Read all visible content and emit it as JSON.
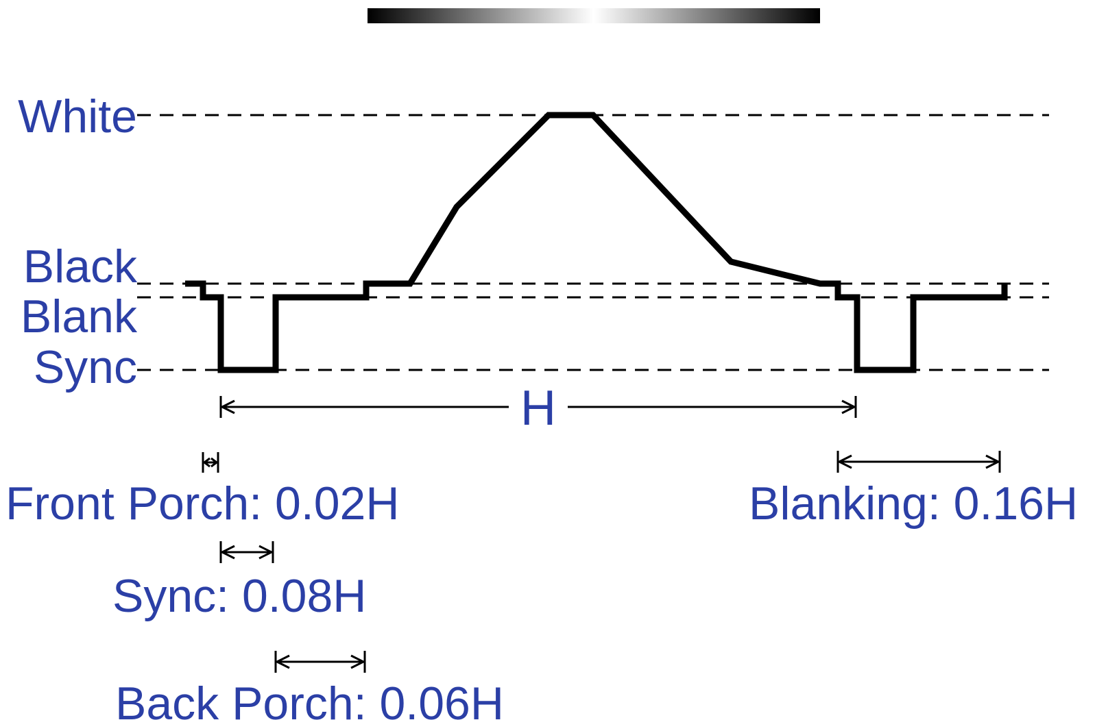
{
  "gradient_bar": {
    "stops": [
      "#000000",
      "#ffffff",
      "#000000"
    ]
  },
  "levels": {
    "white": "White",
    "black": "Black",
    "blank": "Blank",
    "sync": "Sync"
  },
  "period_label": "H",
  "timing": {
    "front_porch": "Front Porch: 0.02H",
    "sync": "Sync: 0.08H",
    "back_porch": "Back Porch: 0.06H",
    "blanking": "Blanking: 0.16H"
  },
  "colors": {
    "label": "#2b3fa6",
    "line": "#000000"
  }
}
